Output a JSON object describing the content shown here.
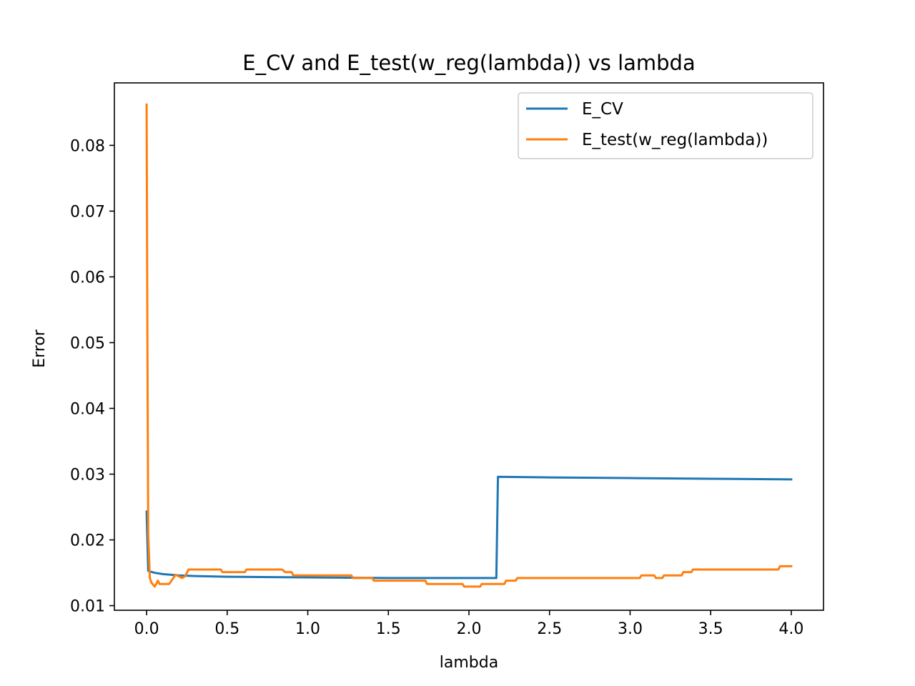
{
  "chart_data": {
    "type": "line",
    "title": "E_CV and E_test(w_reg(lambda)) vs lambda",
    "xlabel": "lambda",
    "ylabel": "Error",
    "xlim": [
      -0.2,
      4.2
    ],
    "ylim": [
      0.0093,
      0.0895
    ],
    "xticks": [
      "0.0",
      "0.5",
      "1.0",
      "1.5",
      "2.0",
      "2.5",
      "3.0",
      "3.5",
      "4.0"
    ],
    "xtick_values": [
      0,
      0.5,
      1.0,
      1.5,
      2.0,
      2.5,
      3.0,
      3.5,
      4.0
    ],
    "yticks": [
      "0.01",
      "0.02",
      "0.03",
      "0.04",
      "0.05",
      "0.06",
      "0.07",
      "0.08"
    ],
    "ytick_values": [
      0.01,
      0.02,
      0.03,
      0.04,
      0.05,
      0.06,
      0.07,
      0.08
    ],
    "grid": false,
    "legend_position": "top-right",
    "series": [
      {
        "name": "E_CV",
        "color": "#1f77b4",
        "x": [
          0.0,
          0.01,
          0.02,
          0.05,
          0.1,
          0.2,
          0.3,
          0.5,
          1.0,
          1.5,
          2.0,
          2.17,
          2.18,
          2.5,
          3.0,
          3.5,
          4.0
        ],
        "y": [
          0.0243,
          0.0153,
          0.0152,
          0.015,
          0.0148,
          0.0146,
          0.0145,
          0.0144,
          0.0143,
          0.0142,
          0.0142,
          0.0142,
          0.0296,
          0.0295,
          0.0294,
          0.0293,
          0.0292
        ]
      },
      {
        "name": "E_test(w_reg(lambda))",
        "color": "#ff7f0e",
        "x": [
          0.0,
          0.005,
          0.01,
          0.02,
          0.03,
          0.05,
          0.06,
          0.07,
          0.08,
          0.09,
          0.1,
          0.14,
          0.16,
          0.18,
          0.22,
          0.24,
          0.26,
          0.46,
          0.47,
          0.61,
          0.62,
          0.84,
          0.86,
          0.9,
          0.91,
          1.27,
          1.28,
          1.4,
          1.41,
          1.73,
          1.74,
          1.96,
          1.97,
          2.07,
          2.08,
          2.22,
          2.23,
          2.29,
          2.3,
          3.06,
          3.07,
          3.15,
          3.16,
          3.2,
          3.21,
          3.32,
          3.33,
          3.38,
          3.39,
          3.92,
          3.93,
          4.0
        ],
        "y": [
          0.0862,
          0.05,
          0.021,
          0.0142,
          0.0135,
          0.0129,
          0.0133,
          0.0138,
          0.0133,
          0.0133,
          0.0133,
          0.0133,
          0.014,
          0.0147,
          0.0142,
          0.0145,
          0.0155,
          0.0155,
          0.0151,
          0.0151,
          0.0155,
          0.0155,
          0.0151,
          0.0151,
          0.0146,
          0.0146,
          0.0142,
          0.0142,
          0.0138,
          0.0138,
          0.0133,
          0.0133,
          0.0129,
          0.0129,
          0.0133,
          0.0133,
          0.0138,
          0.0138,
          0.0142,
          0.0142,
          0.0146,
          0.0146,
          0.0142,
          0.0142,
          0.0146,
          0.0146,
          0.0151,
          0.0151,
          0.0155,
          0.0155,
          0.016,
          0.016
        ]
      }
    ]
  }
}
